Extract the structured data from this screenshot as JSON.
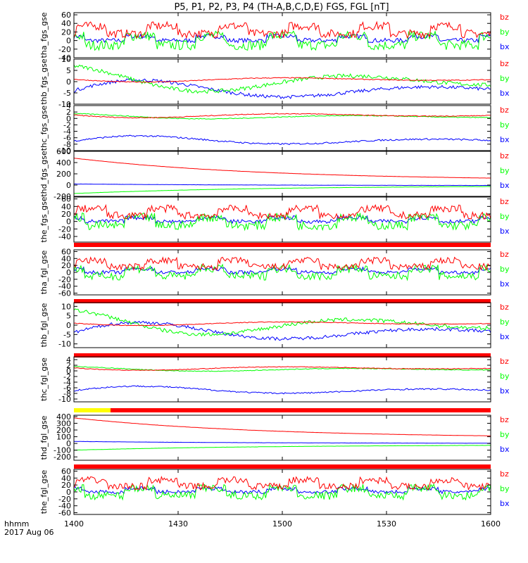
{
  "title": "P5, P1, P2, P3, P4 (TH-A,B,C,D,E) FGS, FGL [nT]",
  "time_axis": {
    "label_top": "hhmm",
    "label_bottom": "2017 Aug 06",
    "ticks": [
      "1400",
      "1430",
      "1500",
      "1530",
      "1600"
    ]
  },
  "colors": {
    "bx": "#0000ff",
    "by": "#00ff00",
    "bz": "#ff0000",
    "bar_red": "#ff0000",
    "bar_yellow": "#ffff00"
  },
  "chart_data": [
    {
      "type": "line",
      "ylabel": "tha_fgs_gse",
      "ylim": [
        -40,
        65
      ],
      "yticks": [
        60,
        40,
        20,
        0,
        -20,
        -40
      ],
      "x_range": [
        "1400",
        "1600"
      ],
      "series": [
        {
          "name": "bz",
          "mean": 25,
          "amplitude": 15
        },
        {
          "name": "by",
          "mean": 0,
          "amplitude": 18
        },
        {
          "name": "bx",
          "mean": 5,
          "amplitude": 8
        }
      ]
    },
    {
      "type": "line",
      "ylabel": "thb_fgs_gse",
      "ylim": [
        -10,
        10
      ],
      "yticks": [
        10,
        5,
        0,
        -5,
        -10
      ],
      "x_range": [
        "1400",
        "1600"
      ],
      "series": [
        {
          "name": "bz",
          "mean": 1,
          "amplitude": 1.5
        },
        {
          "name": "by",
          "mean": 0,
          "amplitude": 7
        },
        {
          "name": "bx",
          "mean": -4,
          "amplitude": 6
        }
      ]
    },
    {
      "type": "line",
      "ylabel": "thc_fgs_gse",
      "ylim": [
        -10,
        4
      ],
      "yticks": [
        4,
        2,
        0,
        -2,
        -4,
        -6,
        -8,
        -10
      ],
      "x_range": [
        "1400",
        "1600"
      ],
      "series": [
        {
          "name": "bz",
          "mean": 1,
          "amplitude": 1
        },
        {
          "name": "by",
          "mean": 0.5,
          "amplitude": 1
        },
        {
          "name": "bx",
          "mean": -7,
          "amplitude": 2
        }
      ]
    },
    {
      "type": "line",
      "ylabel": "thd_fgs_gse",
      "ylim": [
        -200,
        600
      ],
      "yticks": [
        600,
        400,
        200,
        0,
        -200
      ],
      "x_range": [
        "1400",
        "1600"
      ],
      "series": [
        {
          "name": "bz",
          "start": 480,
          "end": 80
        },
        {
          "name": "by",
          "start": -150,
          "end": -10
        },
        {
          "name": "bx",
          "start": 20,
          "end": -10
        }
      ]
    },
    {
      "type": "line",
      "ylabel": "the_fgs_gse",
      "ylim": [
        -55,
        65
      ],
      "yticks": [
        60,
        40,
        20,
        0,
        -20,
        -40
      ],
      "x_range": [
        "1400",
        "1600"
      ],
      "series": [
        {
          "name": "bz",
          "mean": 25,
          "amplitude": 15
        },
        {
          "name": "by",
          "mean": 0,
          "amplitude": 18
        },
        {
          "name": "bx",
          "mean": 5,
          "amplitude": 8
        }
      ]
    },
    {
      "type": "line",
      "ylabel": "tha_fgl_gse",
      "ylim": [
        -65,
        65
      ],
      "yticks": [
        60,
        40,
        20,
        0,
        -20,
        -40,
        -60
      ],
      "x_range": [
        "1400",
        "1600"
      ],
      "series": [
        {
          "name": "bz",
          "mean": 25,
          "amplitude": 15
        },
        {
          "name": "by",
          "mean": 0,
          "amplitude": 18
        },
        {
          "name": "bx",
          "mean": 5,
          "amplitude": 8
        }
      ]
    },
    {
      "type": "line",
      "ylabel": "thb_fgl_gse",
      "ylim": [
        -12,
        12
      ],
      "yticks": [
        10,
        5,
        0,
        -5,
        -10
      ],
      "x_range": [
        "1400",
        "1600"
      ],
      "series": [
        {
          "name": "bz",
          "mean": 1,
          "amplitude": 1.5
        },
        {
          "name": "by",
          "mean": 0,
          "amplitude": 8
        },
        {
          "name": "bx",
          "mean": -4,
          "amplitude": 7
        }
      ]
    },
    {
      "type": "line",
      "ylabel": "thc_fgl_gse",
      "ylim": [
        -11,
        5
      ],
      "yticks": [
        4,
        2,
        0,
        -2,
        -4,
        -6,
        -8,
        -10
      ],
      "x_range": [
        "1400",
        "1600"
      ],
      "series": [
        {
          "name": "bz",
          "mean": 1,
          "amplitude": 1
        },
        {
          "name": "by",
          "mean": 0.5,
          "amplitude": 1
        },
        {
          "name": "bx",
          "mean": -7,
          "amplitude": 2
        }
      ]
    },
    {
      "type": "line",
      "ylabel": "thd_fgl_gse",
      "ylim": [
        -250,
        420
      ],
      "yticks": [
        400,
        300,
        200,
        100,
        0,
        -100,
        -200
      ],
      "x_range": [
        "1400",
        "1600"
      ],
      "series": [
        {
          "name": "bz",
          "start": 380,
          "end": 80
        },
        {
          "name": "by",
          "start": -100,
          "end": -20
        },
        {
          "name": "bx",
          "start": 30,
          "end": 0
        }
      ]
    },
    {
      "type": "line",
      "ylabel": "the_fgl_gse",
      "ylim": [
        -65,
        65
      ],
      "yticks": [
        60,
        40,
        20,
        0,
        -20,
        -40,
        -60
      ],
      "x_range": [
        "1400",
        "1600"
      ],
      "series": [
        {
          "name": "bz",
          "mean": 25,
          "amplitude": 15
        },
        {
          "name": "by",
          "mean": 0,
          "amplitude": 18
        },
        {
          "name": "bx",
          "mean": 5,
          "amplitude": 8
        }
      ]
    }
  ]
}
